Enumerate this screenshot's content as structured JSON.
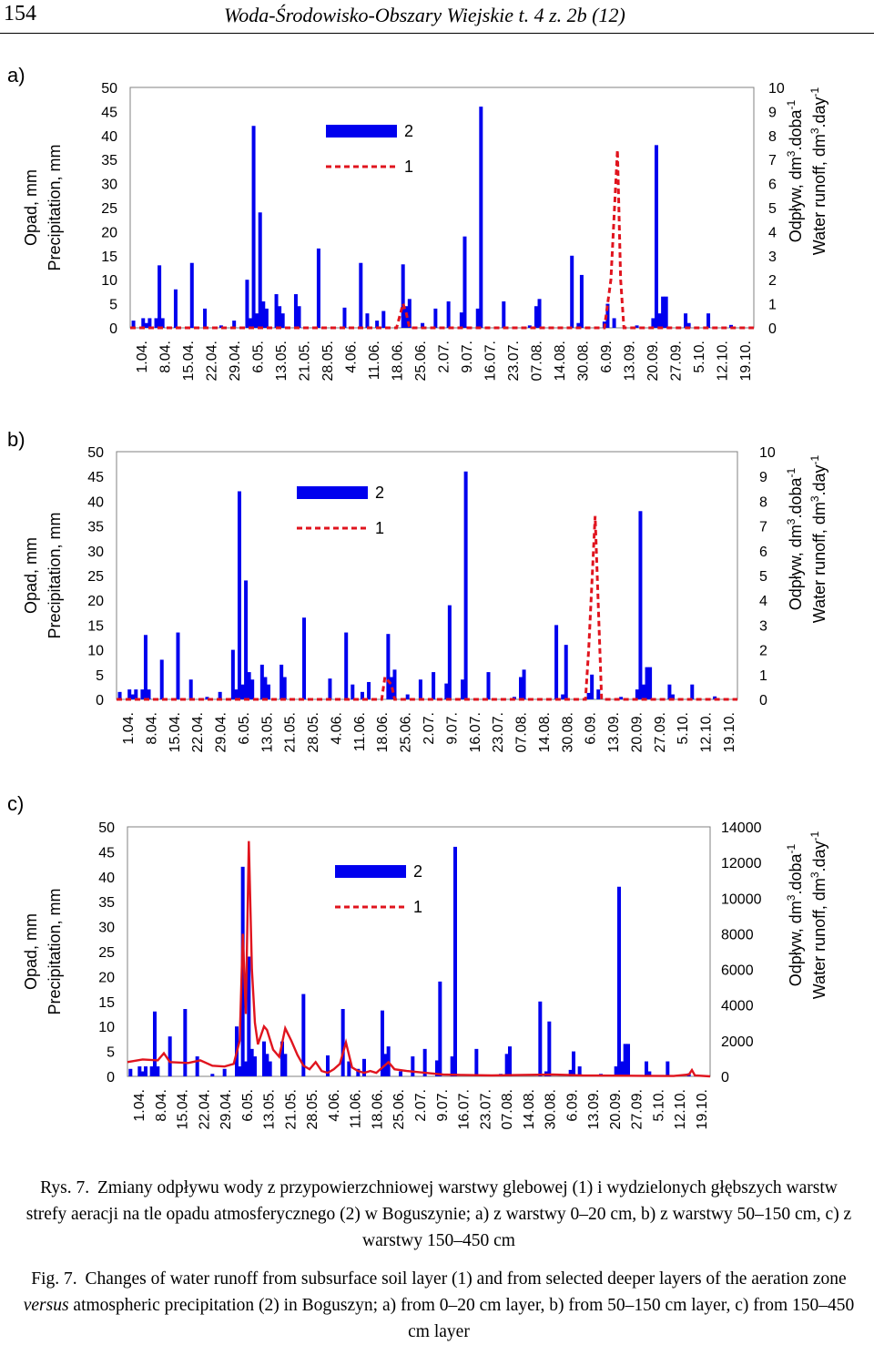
{
  "header": {
    "page_number": "154",
    "journal": "Woda-Środowisko-Obszary Wiejskie t. 4 z. 2b (12)"
  },
  "caption": {
    "pl_label": "Rys. 7.",
    "pl_text": "Zmiany odpływu wody z przypowierzchniowej warstwy glebowej (1) i wydzielonych głębszych warstw strefy aeracji na tle opadu atmosferycznego (2) w Boguszynie; a) z warstwy 0–20 cm, b) z warstwy 50–150 cm, c) z warstwy 150–450 cm",
    "en_label": "Fig. 7.",
    "en_text_1": "Changes of water runoff from subsurface soil layer (1) and from selected deeper layers of the aeration zone",
    "en_text_versus": "versus",
    "en_text_2": "atmospheric precipitation (2) in Boguszyn; a) from 0–20 cm layer, b) from 50–150 cm layer, c) from 150–450 cm layer"
  },
  "chart_data": [
    {
      "panel_label": "a)",
      "type": "bar",
      "left_axis": {
        "label_1": "Opad, mm",
        "label_2": "Precipitation, mm",
        "ticks": [
          "0",
          "5",
          "10",
          "15",
          "20",
          "25",
          "30",
          "35",
          "40",
          "45",
          "50"
        ],
        "range": [
          0,
          50
        ]
      },
      "right_axis": {
        "label_1": "Odpływ, dm",
        "label_2": "Water runoff, dm",
        "ticks": [
          "0",
          "1",
          "2",
          "3",
          "4",
          "5",
          "6",
          "7",
          "8",
          "9",
          "10"
        ],
        "range": [
          0,
          10
        ]
      },
      "date_labels": [
        "1.04.",
        "8.04.",
        "15.04.",
        "22.04.",
        "29.04.",
        "6.05.",
        "13.05.",
        "21.05.",
        "28.05.",
        "4.06.",
        "11.06.",
        "18.06.",
        "25.06.",
        "2.07.",
        "9.07.",
        "16.07.",
        "23.07.",
        "07.08.",
        "14.08.",
        "30.08.",
        "6.09.",
        "13.09.",
        "20.09.",
        "27.09.",
        "5.10.",
        "12.10.",
        "19.10."
      ],
      "legend": {
        "bar": "2",
        "line": "1"
      },
      "series_precip": [
        [
          1,
          1.5
        ],
        [
          4,
          2
        ],
        [
          5,
          1
        ],
        [
          6,
          2
        ],
        [
          8,
          2
        ],
        [
          9,
          13
        ],
        [
          10,
          2
        ],
        [
          14,
          8
        ],
        [
          19,
          13.5
        ],
        [
          23,
          4
        ],
        [
          28,
          0.5
        ],
        [
          32,
          1.5
        ],
        [
          36,
          10
        ],
        [
          37,
          2
        ],
        [
          38,
          42
        ],
        [
          39,
          3
        ],
        [
          40,
          24
        ],
        [
          41,
          5.5
        ],
        [
          42,
          4
        ],
        [
          45,
          7
        ],
        [
          46,
          4.5
        ],
        [
          47,
          3
        ],
        [
          51,
          7
        ],
        [
          52,
          4.5
        ],
        [
          58,
          16.5
        ],
        [
          66,
          4.2
        ],
        [
          71,
          13.5
        ],
        [
          73,
          3
        ],
        [
          76,
          1.5
        ],
        [
          78,
          3.5
        ],
        [
          84,
          13.2
        ],
        [
          85,
          4.5
        ],
        [
          86,
          6
        ],
        [
          90,
          1
        ],
        [
          94,
          4
        ],
        [
          98,
          5.5
        ],
        [
          102,
          3.2
        ],
        [
          103,
          19
        ],
        [
          107,
          4
        ],
        [
          108,
          46
        ],
        [
          115,
          5.5
        ],
        [
          123,
          0.5
        ],
        [
          125,
          4.5
        ],
        [
          126,
          6
        ],
        [
          136,
          15
        ],
        [
          138,
          1
        ],
        [
          139,
          11
        ],
        [
          146,
          1.3
        ],
        [
          147,
          5
        ],
        [
          149,
          2
        ],
        [
          156,
          0.5
        ],
        [
          161,
          2
        ],
        [
          162,
          38
        ],
        [
          163,
          3
        ],
        [
          164,
          6.5
        ],
        [
          165,
          6.5
        ],
        [
          171,
          3
        ],
        [
          172,
          1
        ],
        [
          178,
          3
        ],
        [
          185,
          0.6
        ]
      ],
      "series_runoff": [
        [
          0,
          0
        ],
        [
          82,
          0
        ],
        [
          84,
          1
        ],
        [
          85,
          0.6
        ],
        [
          86,
          0
        ],
        [
          146,
          0
        ],
        [
          148,
          2
        ],
        [
          150,
          7.4
        ],
        [
          151,
          2
        ],
        [
          152,
          0
        ],
        [
          192,
          0
        ]
      ]
    },
    {
      "panel_label": "b)",
      "type": "bar",
      "left_axis": {
        "label_1": "Opad, mm",
        "label_2": "Precipitation, mm",
        "ticks": [
          "0",
          "5",
          "10",
          "15",
          "20",
          "25",
          "30",
          "35",
          "40",
          "45",
          "50"
        ],
        "range": [
          0,
          50
        ]
      },
      "right_axis": {
        "label_1": "Odpływ, dm",
        "label_2": "Water runoff, dm",
        "ticks": [
          "0",
          "1",
          "2",
          "3",
          "4",
          "5",
          "6",
          "7",
          "8",
          "9",
          "10"
        ],
        "range": [
          0,
          10
        ]
      },
      "date_labels": [
        "1.04.",
        "8.04.",
        "15.04.",
        "22.04.",
        "29.04.",
        "6.05.",
        "13.05.",
        "21.05.",
        "28.05.",
        "4.06.",
        "11.06.",
        "18.06.",
        "25.06.",
        "2.07.",
        "9.07.",
        "16.07.",
        "23.07.",
        "07.08.",
        "14.08.",
        "30.08.",
        "6.09.",
        "13.09.",
        "20.09.",
        "27.09.",
        "5.10.",
        "12.10.",
        "19.10."
      ],
      "legend": {
        "bar": "2",
        "line": "1"
      },
      "series_precip": [
        [
          1,
          1.5
        ],
        [
          4,
          2
        ],
        [
          5,
          1
        ],
        [
          6,
          2
        ],
        [
          8,
          2
        ],
        [
          9,
          13
        ],
        [
          10,
          2
        ],
        [
          14,
          8
        ],
        [
          19,
          13.5
        ],
        [
          23,
          4
        ],
        [
          28,
          0.5
        ],
        [
          32,
          1.5
        ],
        [
          36,
          10
        ],
        [
          37,
          2
        ],
        [
          38,
          42
        ],
        [
          39,
          3
        ],
        [
          40,
          24
        ],
        [
          41,
          5.5
        ],
        [
          42,
          4
        ],
        [
          45,
          7
        ],
        [
          46,
          4.5
        ],
        [
          47,
          3
        ],
        [
          51,
          7
        ],
        [
          52,
          4.5
        ],
        [
          58,
          16.5
        ],
        [
          66,
          4.2
        ],
        [
          71,
          13.5
        ],
        [
          73,
          3
        ],
        [
          76,
          1.5
        ],
        [
          78,
          3.5
        ],
        [
          84,
          13.2
        ],
        [
          85,
          4.5
        ],
        [
          86,
          6
        ],
        [
          90,
          1
        ],
        [
          94,
          4
        ],
        [
          98,
          5.5
        ],
        [
          102,
          3.2
        ],
        [
          103,
          19
        ],
        [
          107,
          4
        ],
        [
          108,
          46
        ],
        [
          115,
          5.5
        ],
        [
          123,
          0.5
        ],
        [
          125,
          4.5
        ],
        [
          126,
          6
        ],
        [
          136,
          15
        ],
        [
          138,
          1
        ],
        [
          139,
          11
        ],
        [
          146,
          1.3
        ],
        [
          147,
          5
        ],
        [
          149,
          2
        ],
        [
          156,
          0.5
        ],
        [
          161,
          2
        ],
        [
          162,
          38
        ],
        [
          163,
          3
        ],
        [
          164,
          6.5
        ],
        [
          165,
          6.5
        ],
        [
          171,
          3
        ],
        [
          172,
          1
        ],
        [
          178,
          3
        ],
        [
          185,
          0.6
        ]
      ],
      "series_runoff": [
        [
          0,
          0
        ],
        [
          82,
          0
        ],
        [
          83,
          0.9
        ],
        [
          85,
          0.6
        ],
        [
          86,
          0
        ],
        [
          145,
          0
        ],
        [
          146,
          2
        ],
        [
          148,
          7.4
        ],
        [
          150,
          0
        ],
        [
          192,
          0
        ]
      ]
    },
    {
      "panel_label": "c)",
      "type": "bar",
      "left_axis": {
        "label_1": "Opad, mm",
        "label_2": "Precipitation, mm",
        "ticks": [
          "0",
          "5",
          "10",
          "15",
          "20",
          "25",
          "30",
          "35",
          "40",
          "45",
          "50"
        ],
        "range": [
          0,
          50
        ]
      },
      "right_axis": {
        "label_1": "Odpływ, dm",
        "label_2": "Water runoff, dm",
        "ticks": [
          "0",
          "2000",
          "4000",
          "6000",
          "8000",
          "10000",
          "12000",
          "14000"
        ],
        "range": [
          0,
          14000
        ]
      },
      "date_labels": [
        "1.04.",
        "8.04.",
        "15.04.",
        "22.04.",
        "29.04.",
        "6.05.",
        "13.05.",
        "21.05.",
        "28.05.",
        "4.06.",
        "11.06.",
        "18.06.",
        "25.06.",
        "2.07.",
        "9.07.",
        "16.07.",
        "23.07.",
        "07.08.",
        "14.08.",
        "30.08.",
        "6.09.",
        "13.09.",
        "20.09.",
        "27.09.",
        "5.10.",
        "12.10.",
        "19.10."
      ],
      "legend": {
        "bar": "2",
        "line": "1"
      },
      "series_precip": [
        [
          1,
          1.5
        ],
        [
          4,
          2
        ],
        [
          5,
          1
        ],
        [
          6,
          2
        ],
        [
          8,
          2
        ],
        [
          9,
          13
        ],
        [
          10,
          2
        ],
        [
          14,
          8
        ],
        [
          19,
          13.5
        ],
        [
          23,
          4
        ],
        [
          28,
          0.5
        ],
        [
          32,
          1.5
        ],
        [
          36,
          10
        ],
        [
          37,
          2
        ],
        [
          38,
          42
        ],
        [
          39,
          3
        ],
        [
          40,
          24
        ],
        [
          41,
          5.5
        ],
        [
          42,
          4
        ],
        [
          45,
          7
        ],
        [
          46,
          4.5
        ],
        [
          47,
          3
        ],
        [
          51,
          7
        ],
        [
          52,
          4.5
        ],
        [
          58,
          16.5
        ],
        [
          66,
          4.2
        ],
        [
          71,
          13.5
        ],
        [
          73,
          3
        ],
        [
          76,
          1.5
        ],
        [
          78,
          3.5
        ],
        [
          84,
          13.2
        ],
        [
          85,
          4.5
        ],
        [
          86,
          6
        ],
        [
          90,
          1
        ],
        [
          94,
          4
        ],
        [
          98,
          5.5
        ],
        [
          102,
          3.2
        ],
        [
          103,
          19
        ],
        [
          107,
          4
        ],
        [
          108,
          46
        ],
        [
          115,
          5.5
        ],
        [
          123,
          0.5
        ],
        [
          125,
          4.5
        ],
        [
          126,
          6
        ],
        [
          136,
          15
        ],
        [
          138,
          1
        ],
        [
          139,
          11
        ],
        [
          146,
          1.3
        ],
        [
          147,
          5
        ],
        [
          149,
          2
        ],
        [
          156,
          0.5
        ],
        [
          161,
          2
        ],
        [
          162,
          38
        ],
        [
          163,
          3
        ],
        [
          164,
          6.5
        ],
        [
          165,
          6.5
        ],
        [
          171,
          3
        ],
        [
          172,
          1
        ],
        [
          178,
          3
        ],
        [
          185,
          0.6
        ]
      ],
      "series_runoff": [
        [
          0,
          800
        ],
        [
          5,
          950
        ],
        [
          10,
          900
        ],
        [
          12,
          1300
        ],
        [
          14,
          800
        ],
        [
          20,
          750
        ],
        [
          24,
          900
        ],
        [
          28,
          600
        ],
        [
          32,
          550
        ],
        [
          35,
          700
        ],
        [
          37,
          2000
        ],
        [
          38,
          8000
        ],
        [
          39,
          3500
        ],
        [
          40,
          13200
        ],
        [
          41,
          6000
        ],
        [
          42,
          3000
        ],
        [
          43,
          1800
        ],
        [
          45,
          2800
        ],
        [
          46,
          2600
        ],
        [
          48,
          1500
        ],
        [
          50,
          1100
        ],
        [
          52,
          2700
        ],
        [
          54,
          2000
        ],
        [
          56,
          1200
        ],
        [
          58,
          600
        ],
        [
          60,
          400
        ],
        [
          62,
          800
        ],
        [
          64,
          300
        ],
        [
          66,
          200
        ],
        [
          68,
          400
        ],
        [
          70,
          700
        ],
        [
          72,
          1900
        ],
        [
          74,
          500
        ],
        [
          76,
          300
        ],
        [
          78,
          200
        ],
        [
          80,
          300
        ],
        [
          82,
          200
        ],
        [
          86,
          800
        ],
        [
          88,
          400
        ],
        [
          92,
          300
        ],
        [
          98,
          200
        ],
        [
          104,
          100
        ],
        [
          110,
          80
        ],
        [
          120,
          50
        ],
        [
          130,
          80
        ],
        [
          140,
          100
        ],
        [
          150,
          50
        ],
        [
          160,
          40
        ],
        [
          170,
          30
        ],
        [
          180,
          20
        ],
        [
          185,
          100
        ],
        [
          186,
          350
        ],
        [
          187,
          50
        ],
        [
          192,
          0
        ]
      ]
    }
  ]
}
